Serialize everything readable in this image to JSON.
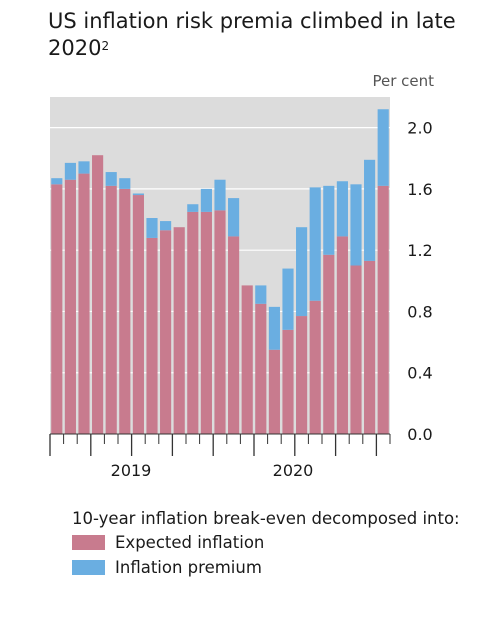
{
  "title": "US inflation risk premia climbed in late 2020",
  "title_footnote": "2",
  "unit_label": "Per cent",
  "colors": {
    "plot_bg": "#dcdcdc",
    "expected": "#c87b8e",
    "premium": "#6aaee1",
    "grid": "#ffffff",
    "axis": "#333333"
  },
  "legend": {
    "heading": "10-year inflation break-even decomposed into:",
    "items": [
      "Expected inflation",
      "Inflation premium"
    ]
  },
  "chart_data": {
    "type": "bar",
    "stacked": true,
    "ylim": [
      0.0,
      2.2
    ],
    "y_ticks": [
      "0.0",
      "0.4",
      "0.8",
      "1.2",
      "1.6",
      "2.0"
    ],
    "x_tick_labels": [
      "2019",
      "2020"
    ],
    "grid": true,
    "series": [
      {
        "name": "Expected inflation",
        "values": [
          1.63,
          1.66,
          1.7,
          1.82,
          1.62,
          1.6,
          1.56,
          1.28,
          1.33,
          1.35,
          1.45,
          1.45,
          1.46,
          1.29,
          0.97,
          0.85,
          0.55,
          0.68,
          0.77,
          0.87,
          1.17,
          1.29,
          1.1,
          1.13,
          1.62
        ]
      },
      {
        "name": "Inflation premium",
        "values": [
          0.04,
          0.11,
          0.08,
          0.0,
          0.09,
          0.07,
          0.01,
          0.13,
          0.06,
          0.0,
          0.05,
          0.15,
          0.2,
          0.25,
          0.0,
          0.12,
          0.28,
          0.4,
          0.58,
          0.74,
          0.45,
          0.36,
          0.53,
          0.66,
          0.5
        ]
      }
    ]
  }
}
